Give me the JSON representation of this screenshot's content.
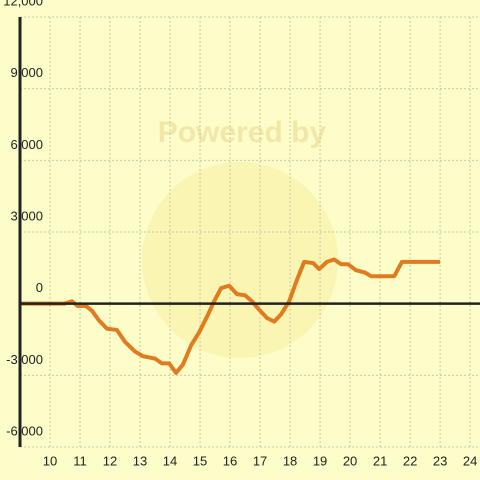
{
  "chart_data": {
    "type": "line",
    "watermark": "Powered by",
    "x": [
      9.0,
      10.47,
      10.73,
      10.93,
      11.2,
      11.4,
      11.63,
      11.9,
      12.23,
      12.5,
      12.83,
      13.1,
      13.5,
      13.73,
      13.97,
      14.2,
      14.43,
      14.7,
      14.97,
      15.23,
      15.47,
      15.7,
      15.97,
      16.23,
      16.5,
      16.73,
      16.97,
      17.23,
      17.47,
      17.7,
      17.97,
      18.2,
      18.47,
      18.77,
      18.97,
      19.23,
      19.47,
      19.7,
      19.93,
      20.2,
      20.5,
      20.7,
      21.2,
      21.47,
      21.73,
      23.0
    ],
    "series": [
      {
        "color": "#e07b20",
        "values": [
          0,
          0,
          100,
          -100,
          -100,
          -300,
          -700,
          -1050,
          -1100,
          -1600,
          -2000,
          -2200,
          -2300,
          -2500,
          -2500,
          -2900,
          -2550,
          -1750,
          -1200,
          -550,
          100,
          650,
          750,
          400,
          350,
          100,
          -250,
          -600,
          -750,
          -450,
          100,
          900,
          1750,
          1700,
          1450,
          1750,
          1850,
          1650,
          1650,
          1400,
          1300,
          1150,
          1150,
          1150,
          1750,
          1750
        ]
      }
    ],
    "xlim": [
      9,
      24.33
    ],
    "xticks": [
      10,
      11,
      12,
      13,
      14,
      15,
      16,
      17,
      18,
      19,
      20,
      21,
      22,
      23,
      24
    ],
    "ylim": [
      -6000,
      12000
    ],
    "yticks": [
      {
        "value": -6000,
        "label": "-6,000"
      },
      {
        "value": -3000,
        "label": "-3,000"
      },
      0,
      {
        "value": 3000,
        "label": "3,000"
      },
      {
        "value": 6000,
        "label": "6,000"
      },
      {
        "value": 9000,
        "label": "9,000"
      },
      {
        "value": 12000,
        "label": "12,000"
      }
    ],
    "grid": true
  }
}
